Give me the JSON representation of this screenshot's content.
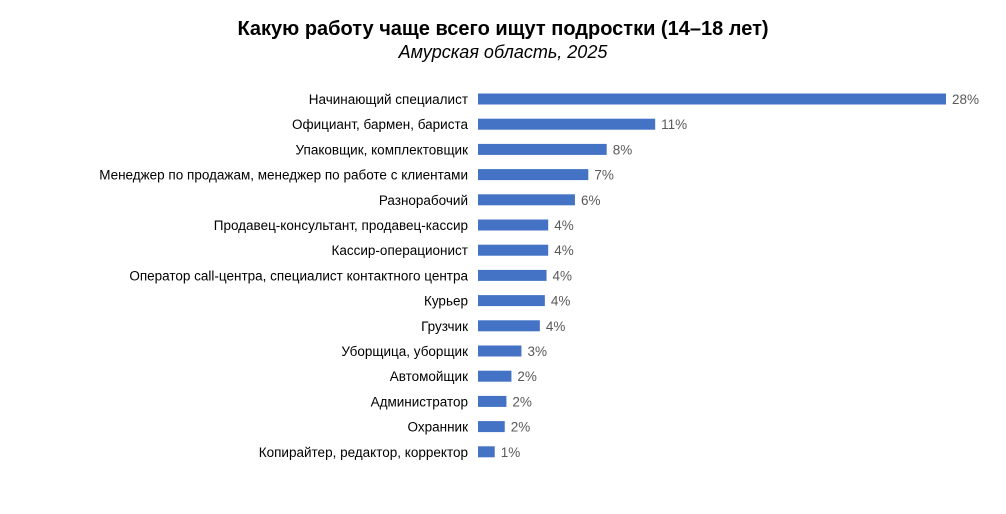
{
  "chart_data": {
    "type": "bar",
    "orientation": "horizontal",
    "title": "Какую работу чаще всего ищут подростки (14–18 лет)",
    "subtitle": "Амурская область, 2025",
    "categories": [
      "Начинающий специалист",
      "Официант, бармен, бариста",
      "Упаковщик, комплектовщик",
      "Менеджер по продажам, менеджер по работе с клиентами",
      "Разнорабочий",
      "Продавец-консультант, продавец-кассир",
      "Кассир-операционист",
      "Оператор call-центра, специалист контактного центра",
      "Курьер",
      "Грузчик",
      "Уборщица, уборщик",
      "Автомойщик",
      "Администратор",
      "Охранник",
      "Копирайтер, редактор, корректор"
    ],
    "values": [
      28,
      10.6,
      7.7,
      6.6,
      5.8,
      4.2,
      4.2,
      4.1,
      4.0,
      3.7,
      2.6,
      2.0,
      1.7,
      1.6,
      1.0
    ],
    "labels": [
      "28%",
      "11%",
      "8%",
      "7%",
      "6%",
      "4%",
      "4%",
      "4%",
      "4%",
      "4%",
      "3%",
      "2%",
      "2%",
      "2%",
      "1%"
    ],
    "xlim": [
      0,
      28
    ],
    "grid": false,
    "legend": "none",
    "bar_color": "#4472C4"
  }
}
